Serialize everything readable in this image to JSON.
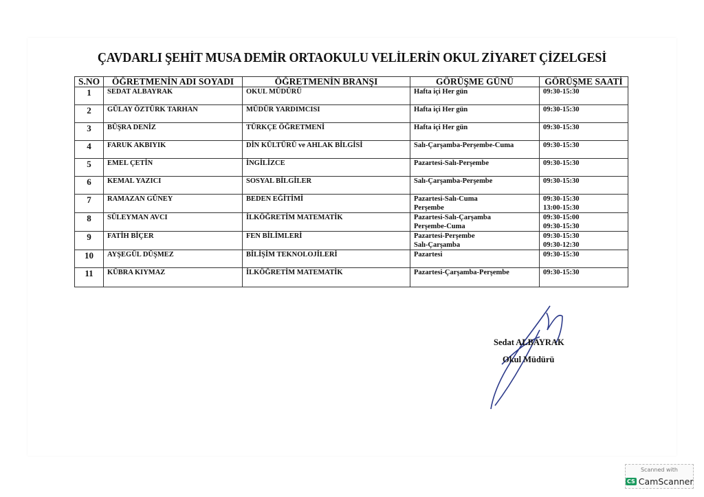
{
  "title": "ÇAVDARLI ŞEHİT MUSA DEMİR ORTAOKULU VELİLERİN OKUL ZİYARET ÇİZELGESİ",
  "table": {
    "headers": [
      "S.NO",
      "ÖĞRETMENİN ADI SOYADI",
      "ÖĞRETMENİN BRANŞI",
      "GÖRÜŞME GÜNÜ",
      "GÖRÜŞME SAATİ"
    ],
    "rows": [
      {
        "no": "1",
        "name": "SEDAT ALBAYRAK",
        "branch": "OKUL MÜDÜRÜ",
        "days": [
          "Hafta içi Her gün"
        ],
        "times": [
          "09:30-15:30"
        ]
      },
      {
        "no": "2",
        "name": "GÜLAY ÖZTÜRK TARHAN",
        "branch": "MÜDÜR YARDIMCISI",
        "days": [
          "Hafta içi Her gün"
        ],
        "times": [
          "09:30-15:30"
        ]
      },
      {
        "no": "3",
        "name": "BÜŞRA DENİZ",
        "branch": "TÜRKÇE ÖĞRETMENİ",
        "days": [
          "Hafta içi Her gün"
        ],
        "times": [
          "09:30-15:30"
        ]
      },
      {
        "no": "4",
        "name": "FARUK AKBIYIK",
        "branch": "DİN KÜLTÜRÜ ve AHLAK BİLGİSİ",
        "days": [
          "Salı-Çarşamba-Perşembe-Cuma"
        ],
        "times": [
          "09:30-15:30"
        ]
      },
      {
        "no": "5",
        "name": "EMEL ÇETİN",
        "branch": "İNGİLİZCE",
        "days": [
          "Pazartesi-Salı-Perşembe"
        ],
        "times": [
          "09:30-15:30"
        ]
      },
      {
        "no": "6",
        "name": "KEMAL YAZICI",
        "branch": "SOSYAL BİLGİLER",
        "days": [
          "Salı-Çarşamba-Perşembe"
        ],
        "times": [
          "09:30-15:30"
        ]
      },
      {
        "no": "7",
        "name": "RAMAZAN GÜNEY",
        "branch": "BEDEN EĞİTİMİ",
        "days": [
          "Pazartesi-Salı-Cuma",
          "Perşembe"
        ],
        "times": [
          "09:30-15:30",
          "13:00-15:30"
        ]
      },
      {
        "no": "8",
        "name": "SÜLEYMAN AVCI",
        "branch": "İLKÖĞRETİM MATEMATİK",
        "days": [
          "Pazartesi-Salı-Çarşamba",
          "Perşembe-Cuma"
        ],
        "times": [
          "09:30-15:00",
          "09:30-15:30"
        ]
      },
      {
        "no": "9",
        "name": "FATİH BİÇER",
        "branch": "FEN BİLİMLERİ",
        "days": [
          "Pazartesi-Perşembe",
          "Salı-Çarşamba"
        ],
        "times": [
          "09:30-15:30",
          "09:30-12:30"
        ]
      },
      {
        "no": "10",
        "name": "AYŞEGÜL DÜŞMEZ",
        "branch": "BİLİŞİM TEKNOLOJİLERİ",
        "days": [
          "Pazartesi"
        ],
        "times": [
          "09:30-15:30"
        ]
      },
      {
        "no": "11",
        "name": "KÜBRA KIYMAZ",
        "branch": "İLKÖĞRETİM MATEMATİK",
        "days": [
          "Pazartesi-Çarşamba-Perşembe"
        ],
        "times": [
          "09:30-15:30"
        ]
      }
    ]
  },
  "signature": {
    "name": "Sedat ALBAYRAK",
    "title": "Okul Müdürü"
  },
  "watermark": {
    "line1": "Scanned with",
    "brand": "CamScanner",
    "logo": "CS",
    "logo_color": "#1a9a5e"
  }
}
